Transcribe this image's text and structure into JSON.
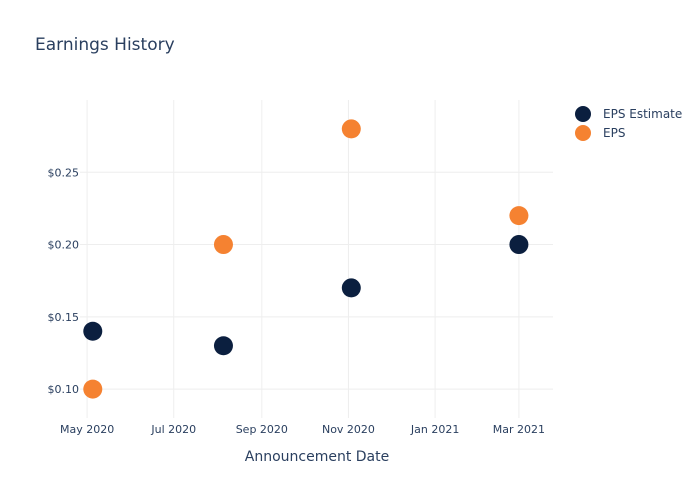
{
  "chart_data": {
    "type": "scatter",
    "title": "Earnings History",
    "xlabel": "Announcement Date",
    "ylabel": "",
    "x_ticks": [
      {
        "date": "2020-05-01",
        "label": "May 2020"
      },
      {
        "date": "2020-07-01",
        "label": "Jul 2020"
      },
      {
        "date": "2020-09-01",
        "label": "Sep 2020"
      },
      {
        "date": "2020-11-01",
        "label": "Nov 2020"
      },
      {
        "date": "2021-01-01",
        "label": "Jan 2021"
      },
      {
        "date": "2021-03-01",
        "label": "Mar 2021"
      }
    ],
    "y_ticks": [
      {
        "value": 0.1,
        "label": "$0.10"
      },
      {
        "value": 0.15,
        "label": "$0.15"
      },
      {
        "value": 0.2,
        "label": "$0.20"
      },
      {
        "value": 0.25,
        "label": "$0.25"
      }
    ],
    "xlim": [
      "2020-04-26",
      "2021-03-25"
    ],
    "ylim": [
      0.08,
      0.3
    ],
    "grid": true,
    "legend_position": "top-right",
    "series": [
      {
        "name": "EPS Estimate",
        "color": "#0b1f3f",
        "points": [
          {
            "x": "2020-05-05",
            "y": 0.14
          },
          {
            "x": "2020-08-05",
            "y": 0.13
          },
          {
            "x": "2020-11-03",
            "y": 0.17
          },
          {
            "x": "2021-03-01",
            "y": 0.2
          }
        ]
      },
      {
        "name": "EPS",
        "color": "#f58231",
        "points": [
          {
            "x": "2020-05-05",
            "y": 0.1
          },
          {
            "x": "2020-08-05",
            "y": 0.2
          },
          {
            "x": "2020-11-03",
            "y": 0.28
          },
          {
            "x": "2021-03-01",
            "y": 0.22
          }
        ]
      }
    ]
  }
}
